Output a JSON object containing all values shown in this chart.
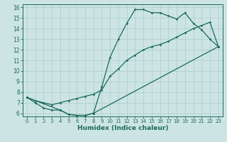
{
  "xlabel": "Humidex (Indice chaleur)",
  "bg_color": "#cde4e4",
  "line_color": "#1a6b5a",
  "grid_color": "#aacccc",
  "xlim": [
    -0.5,
    23.5
  ],
  "ylim": [
    5.7,
    16.3
  ],
  "xticks": [
    0,
    1,
    2,
    3,
    4,
    5,
    6,
    7,
    8,
    9,
    10,
    11,
    12,
    13,
    14,
    15,
    16,
    17,
    18,
    19,
    20,
    21,
    22,
    23
  ],
  "yticks": [
    6,
    7,
    8,
    9,
    10,
    11,
    12,
    13,
    14,
    15,
    16
  ],
  "line1_x": [
    0,
    1,
    2,
    3,
    4,
    5,
    6,
    7,
    8,
    9,
    10,
    11,
    12,
    13,
    14,
    15,
    16,
    17,
    18,
    19,
    20,
    21,
    22,
    23
  ],
  "line1_y": [
    7.5,
    7.0,
    6.5,
    6.3,
    6.3,
    5.9,
    5.8,
    5.8,
    6.0,
    8.5,
    11.3,
    13.0,
    14.5,
    15.8,
    15.8,
    15.5,
    15.5,
    15.2,
    14.9,
    15.5,
    14.5,
    13.9,
    13.0,
    12.3
  ],
  "line2_x": [
    0,
    1,
    2,
    3,
    4,
    5,
    6,
    7,
    8,
    9,
    10,
    11,
    12,
    13,
    14,
    15,
    16,
    17,
    18,
    19,
    20,
    21,
    22,
    23
  ],
  "line2_y": [
    7.5,
    7.2,
    7.0,
    6.8,
    7.0,
    7.2,
    7.4,
    7.6,
    7.8,
    8.2,
    9.5,
    10.2,
    11.0,
    11.5,
    12.0,
    12.3,
    12.5,
    12.8,
    13.2,
    13.6,
    14.0,
    14.3,
    14.6,
    12.3
  ],
  "line3_x": [
    0,
    4,
    5,
    6,
    7,
    8,
    23
  ],
  "line3_y": [
    7.5,
    6.3,
    5.9,
    5.8,
    5.8,
    6.0,
    12.3
  ],
  "xlabel_fontsize": 6.5,
  "tick_fontsize_x": 5.0,
  "tick_fontsize_y": 5.5
}
